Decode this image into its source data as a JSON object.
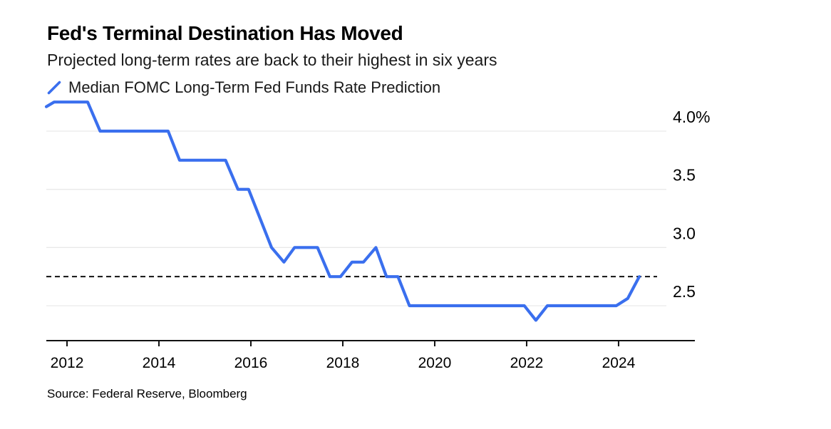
{
  "header": {
    "title": "Fed's Terminal Destination Has Moved",
    "subtitle": "Projected long-term rates are back to their highest in six years"
  },
  "legend": {
    "label": "Median FOMC Long-Term Fed Funds Rate Prediction"
  },
  "footer": {
    "source": "Source: Federal Reserve, Bloomberg"
  },
  "colors": {
    "line": "#3a6fee",
    "grid": "#e9e9e9",
    "axis": "#111111",
    "reference_line": "#111111"
  },
  "chart_data": {
    "type": "line",
    "title": "Fed's Terminal Destination Has Moved",
    "subtitle": "Projected long-term rates are back to their highest in six years",
    "unit": "%",
    "grid": "horizontal",
    "legend_position": "top-left",
    "xlim": [
      2011.55,
      2025.66
    ],
    "ylim": [
      2.2,
      4.3
    ],
    "x_ticks": [
      {
        "value": 2012,
        "label": "2012"
      },
      {
        "value": 2014,
        "label": "2014"
      },
      {
        "value": 2016,
        "label": "2016"
      },
      {
        "value": 2018,
        "label": "2018"
      },
      {
        "value": 2020,
        "label": "2020"
      },
      {
        "value": 2022,
        "label": "2022"
      },
      {
        "value": 2024,
        "label": "2024"
      }
    ],
    "y_ticks": [
      {
        "value": 4.0,
        "label": "4.0%"
      },
      {
        "value": 3.5,
        "label": "3.5"
      },
      {
        "value": 3.0,
        "label": "3.0"
      },
      {
        "value": 2.5,
        "label": "2.5"
      }
    ],
    "reference_line": {
      "value": 2.75,
      "style": "dashed"
    },
    "series": [
      {
        "name": "Median FOMC Long-Term Fed Funds Rate Prediction",
        "points": [
          [
            2011.55,
            4.21
          ],
          [
            2011.72,
            4.25
          ],
          [
            2012.07,
            4.25
          ],
          [
            2012.3,
            4.25
          ],
          [
            2012.45,
            4.25
          ],
          [
            2012.72,
            4.0
          ],
          [
            2012.95,
            4.0
          ],
          [
            2013.2,
            4.0
          ],
          [
            2013.45,
            4.0
          ],
          [
            2013.72,
            4.0
          ],
          [
            2013.95,
            4.0
          ],
          [
            2014.2,
            4.0
          ],
          [
            2014.45,
            3.75
          ],
          [
            2014.72,
            3.75
          ],
          [
            2014.95,
            3.75
          ],
          [
            2015.2,
            3.75
          ],
          [
            2015.45,
            3.75
          ],
          [
            2015.72,
            3.5
          ],
          [
            2015.95,
            3.5
          ],
          [
            2016.2,
            3.25
          ],
          [
            2016.45,
            3.0
          ],
          [
            2016.72,
            2.875
          ],
          [
            2016.95,
            3.0
          ],
          [
            2017.2,
            3.0
          ],
          [
            2017.45,
            3.0
          ],
          [
            2017.72,
            2.75
          ],
          [
            2017.95,
            2.75
          ],
          [
            2018.2,
            2.875
          ],
          [
            2018.45,
            2.875
          ],
          [
            2018.72,
            3.0
          ],
          [
            2018.95,
            2.75
          ],
          [
            2019.2,
            2.75
          ],
          [
            2019.45,
            2.5
          ],
          [
            2019.72,
            2.5
          ],
          [
            2019.95,
            2.5
          ],
          [
            2020.45,
            2.5
          ],
          [
            2020.72,
            2.5
          ],
          [
            2020.95,
            2.5
          ],
          [
            2021.2,
            2.5
          ],
          [
            2021.45,
            2.5
          ],
          [
            2021.72,
            2.5
          ],
          [
            2021.95,
            2.5
          ],
          [
            2022.2,
            2.375
          ],
          [
            2022.45,
            2.5
          ],
          [
            2022.72,
            2.5
          ],
          [
            2022.95,
            2.5
          ],
          [
            2023.2,
            2.5
          ],
          [
            2023.45,
            2.5
          ],
          [
            2023.72,
            2.5
          ],
          [
            2023.95,
            2.5
          ],
          [
            2024.2,
            2.5625
          ],
          [
            2024.45,
            2.75
          ]
        ]
      }
    ]
  }
}
